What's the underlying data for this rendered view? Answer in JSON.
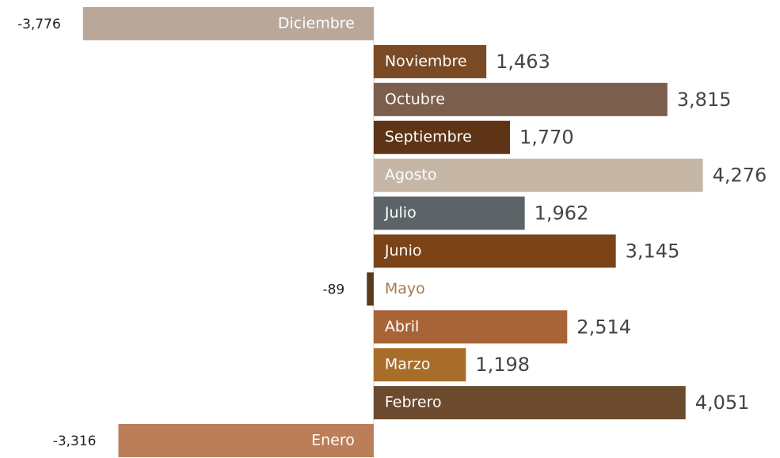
{
  "chart_data": {
    "type": "bar",
    "orientation": "horizontal",
    "categories": [
      "Enero",
      "Febrero",
      "Marzo",
      "Abril",
      "Mayo",
      "Junio",
      "Julio",
      "Agosto",
      "Septiembre",
      "Octubre",
      "Noviembre",
      "Diciembre"
    ],
    "values": [
      -3316,
      4051,
      1198,
      2514,
      -89,
      3145,
      1962,
      4276,
      1770,
      3815,
      1463,
      -3776
    ],
    "value_labels": [
      "-3,316",
      "4,051",
      "1,198",
      "2,514",
      "-89",
      "3,145",
      "1,962",
      "4,276",
      "1,770",
      "3,815",
      "1,463",
      "-3,776"
    ],
    "colors": [
      "#bb7e58",
      "#6b4a2e",
      "#a86d2a",
      "#a86436",
      "#5a3a1e",
      "#7a4318",
      "#5c6468",
      "#c5b6a6",
      "#5e3416",
      "#7b5e4c",
      "#7a4a24",
      "#b9a89a"
    ],
    "xlim": [
      -4000,
      5000
    ]
  }
}
